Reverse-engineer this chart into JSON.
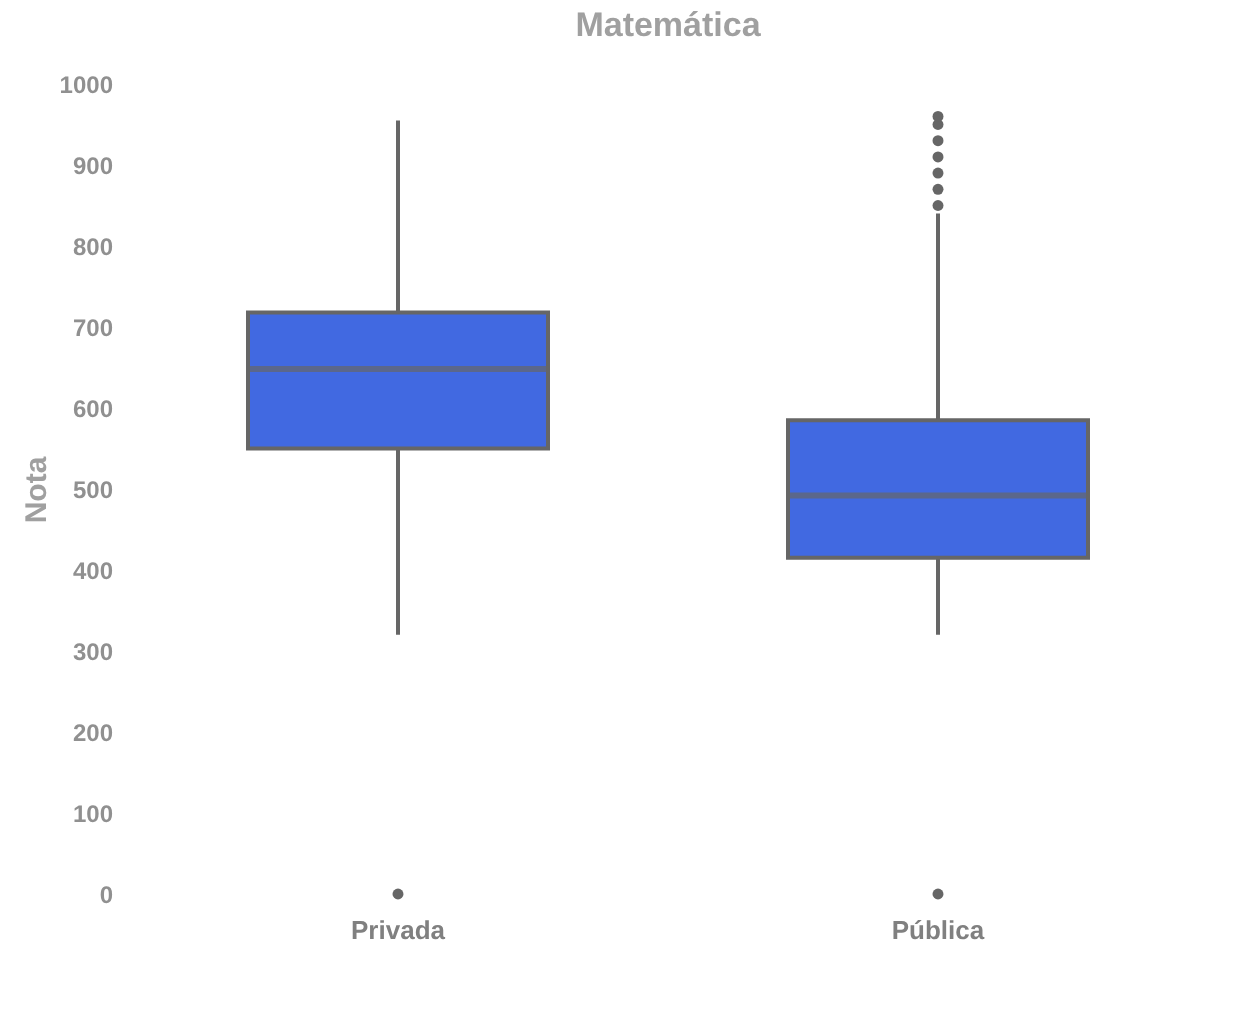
{
  "chart_data": {
    "type": "box",
    "title": "Matemática",
    "ylabel": "Nota",
    "categories": [
      "Privada",
      "Pública"
    ],
    "ylim": [
      0,
      1000
    ],
    "yticks": [
      0,
      100,
      200,
      300,
      400,
      500,
      600,
      700,
      800,
      900,
      1000
    ],
    "grid": false,
    "series": [
      {
        "color": "#4169e1",
        "boxes": [
          {
            "low": 320,
            "q1": 550,
            "median": 648,
            "q3": 718,
            "high": 955,
            "outliers": [
              0
            ]
          },
          {
            "low": 320,
            "q1": 415,
            "median": 492,
            "q3": 585,
            "high": 840,
            "outliers": [
              0,
              850,
              870,
              890,
              910,
              930,
              950,
              960
            ]
          }
        ]
      }
    ]
  }
}
